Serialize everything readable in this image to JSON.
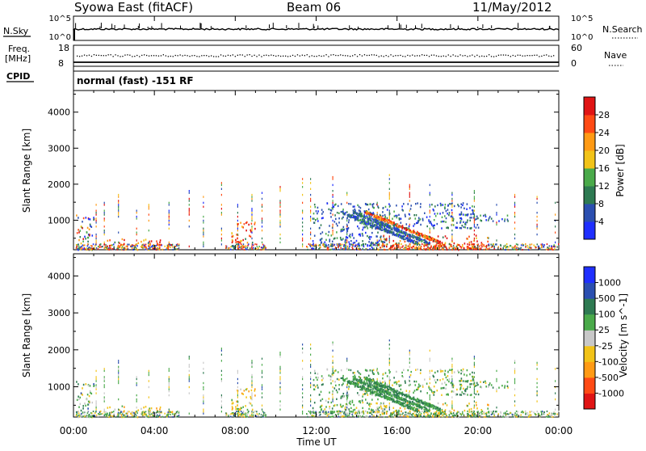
{
  "header": {
    "station": "Syowa East (fitACF)",
    "beam": "Beam 06",
    "date": "11/May/2012"
  },
  "top_panels": {
    "nsky_label": "N.Sky",
    "nsky_ticks": [
      "10^5",
      "10^0"
    ],
    "nsearch_label": "N.Search",
    "nsearch_ticks": [
      "10^5",
      "10^0"
    ],
    "freq_label_1": "Freq.",
    "freq_label_2": "[MHz]",
    "freq_ticks": [
      "18",
      "8"
    ],
    "nave_label": "Nave",
    "nave_ticks": [
      "60",
      "0"
    ],
    "cpid_label": "CPID",
    "cpid_text": "normal (fast) -151 RF"
  },
  "chart_data": [
    {
      "type": "heatmap",
      "name": "power",
      "ylabel": "Slant Range [km]",
      "xlabel": "",
      "ylim": [
        180,
        4600
      ],
      "yticks": [
        "1000",
        "2000",
        "3000",
        "4000"
      ],
      "colorbar_label": "Power [dB]",
      "colorbar_ticks": [
        "4",
        "8",
        "12",
        "16",
        "20",
        "24",
        "28"
      ],
      "colorbar_colors": [
        "#1f2fff",
        "#2b4fb0",
        "#2e7a52",
        "#4aaa4a",
        "#f2c318",
        "#ff9a14",
        "#ff4a14",
        "#e01414"
      ],
      "regions": [
        {
          "t": [
            0.1,
            1.0
          ],
          "r": [
            200,
            1200
          ],
          "level": "mixed"
        },
        {
          "t": [
            1.5,
            5.0
          ],
          "r": [
            200,
            500
          ],
          "level": "high"
        },
        {
          "t": [
            7.7,
            9.0
          ],
          "r": [
            400,
            1000
          ],
          "level": "high"
        },
        {
          "t": [
            11.8,
            15.5
          ],
          "r": [
            300,
            1500
          ],
          "level": "low"
        },
        {
          "t": [
            13.8,
            20.0
          ],
          "r": [
            800,
            1500
          ],
          "level": "low"
        },
        {
          "t": [
            15.0,
            20.5
          ],
          "r": [
            200,
            600
          ],
          "level": "high"
        },
        {
          "t": [
            19.0,
            21.5
          ],
          "r": [
            1000,
            1200
          ],
          "level": "low"
        }
      ]
    },
    {
      "type": "heatmap",
      "name": "velocity",
      "ylabel": "Slant Range [km]",
      "xlabel": "Time UT",
      "xticks": [
        "00:00",
        "04:00",
        "08:00",
        "12:00",
        "16:00",
        "20:00",
        "00:00"
      ],
      "ylim": [
        180,
        4600
      ],
      "yticks": [
        "1000",
        "2000",
        "3000",
        "4000"
      ],
      "colorbar_label": "Velocity [m s^-1]",
      "colorbar_ticks": [
        "1000",
        "500",
        "100",
        "25",
        "-25",
        "-100",
        "-500",
        "-1000"
      ],
      "colorbar_colors": [
        "#1f2fff",
        "#2b4fb0",
        "#2e7a52",
        "#4aaa4a",
        "#c8c8c8",
        "#f2c318",
        "#ff9a14",
        "#ff4a14",
        "#e01414"
      ]
    }
  ]
}
